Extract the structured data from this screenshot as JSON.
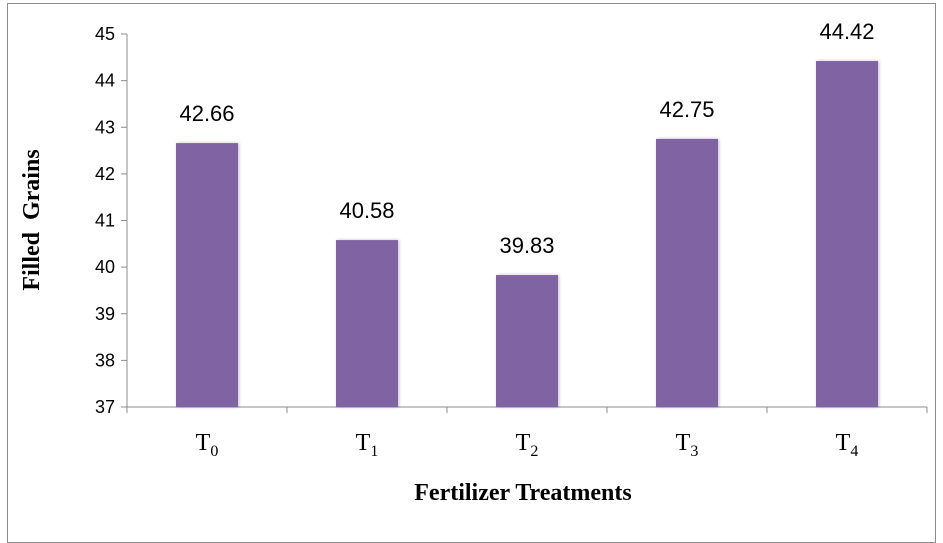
{
  "chart_data": {
    "type": "bar",
    "categories": [
      {
        "base": "T",
        "sub": "0"
      },
      {
        "base": "T",
        "sub": "1"
      },
      {
        "base": "T",
        "sub": "2"
      },
      {
        "base": "T",
        "sub": "3"
      },
      {
        "base": "T",
        "sub": "4"
      }
    ],
    "values": [
      42.66,
      40.58,
      39.83,
      42.75,
      44.42
    ],
    "data_labels": [
      "42.66",
      "40.58",
      "39.83",
      "42.75",
      "44.42"
    ],
    "xlabel": "Fertilizer Treatments",
    "ylabel": "Filled  Grains",
    "ylim": [
      37,
      45
    ],
    "yticks": [
      "37",
      "38",
      "39",
      "40",
      "41",
      "42",
      "43",
      "44",
      "45"
    ],
    "bar_color": "#8064a2",
    "grid": false,
    "legend": "none"
  }
}
